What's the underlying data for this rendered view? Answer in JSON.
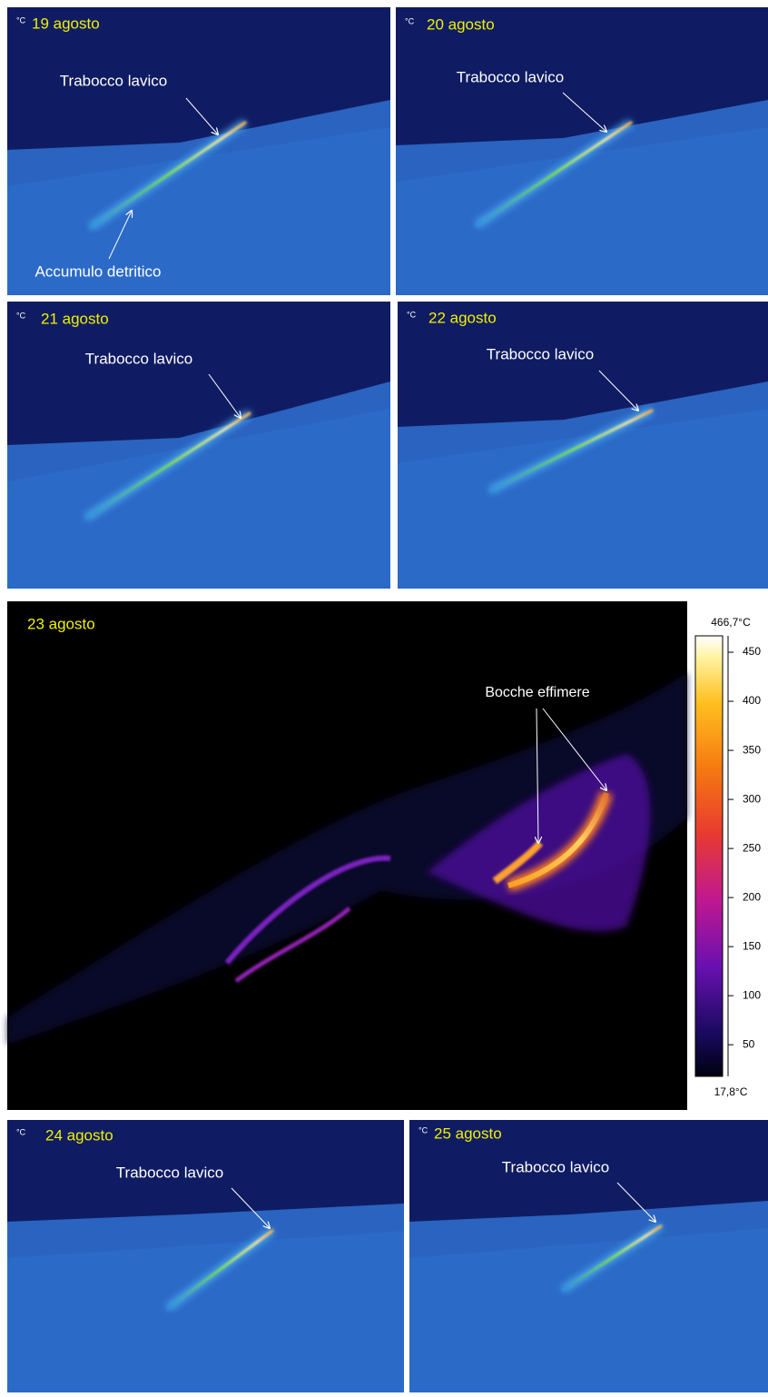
{
  "panels": [
    {
      "unit": "°C",
      "date": "19 agosto",
      "annotations": [
        "Trabocco lavico",
        "Accumulo detritico"
      ]
    },
    {
      "unit": "°C",
      "date": "20 agosto",
      "annotations": [
        "Trabocco lavico"
      ]
    },
    {
      "unit": "°C",
      "date": "21 agosto",
      "annotations": [
        "Trabocco lavico"
      ]
    },
    {
      "unit": "°C",
      "date": "22 agosto",
      "annotations": [
        "Trabocco lavico"
      ]
    },
    {
      "unit": "°C",
      "date": "24 agosto",
      "annotations": [
        "Trabocco lavico"
      ]
    },
    {
      "unit": "°C",
      "date": "25 agosto",
      "annotations": [
        "Trabocco lavico"
      ]
    }
  ],
  "main_panel": {
    "date": "23 agosto",
    "annotation": "Bocche effimere"
  },
  "colorbar": {
    "max_label": "466,7°C",
    "min_label": "17,8°C",
    "range": [
      17.8,
      466.7
    ],
    "ticks": [
      50,
      100,
      150,
      200,
      250,
      300,
      350,
      400,
      450
    ]
  }
}
